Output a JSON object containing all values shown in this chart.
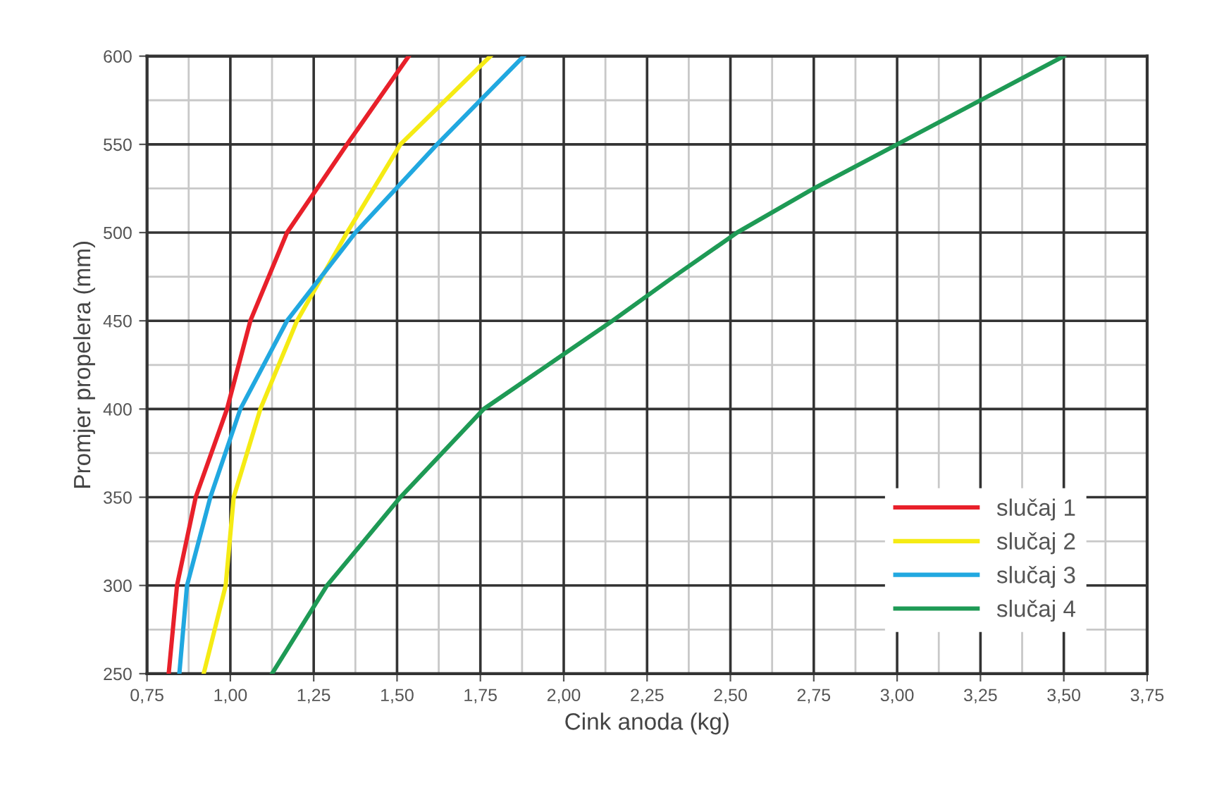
{
  "chart_data": {
    "type": "line",
    "xlabel": "Cink anoda (kg)",
    "ylabel": "Promjer propelera (mm)",
    "xlim": [
      0.75,
      3.75
    ],
    "ylim": [
      250,
      600
    ],
    "xticks": [
      {
        "value": 0.75,
        "label": "0,75"
      },
      {
        "value": 1.0,
        "label": "1,00"
      },
      {
        "value": 1.25,
        "label": "1,25"
      },
      {
        "value": 1.5,
        "label": "1,50"
      },
      {
        "value": 1.75,
        "label": "1,75"
      },
      {
        "value": 2.0,
        "label": "2,00"
      },
      {
        "value": 2.25,
        "label": "2,25"
      },
      {
        "value": 2.5,
        "label": "2,50"
      },
      {
        "value": 2.75,
        "label": "2,75"
      },
      {
        "value": 3.0,
        "label": "3,00"
      },
      {
        "value": 3.25,
        "label": "3,25"
      },
      {
        "value": 3.5,
        "label": "3,50"
      },
      {
        "value": 3.75,
        "label": "3,75"
      }
    ],
    "yticks": [
      250,
      300,
      350,
      400,
      450,
      500,
      550,
      600
    ],
    "grid": true,
    "legend": "lower right",
    "line_style": "solid",
    "marker": "none",
    "series": [
      {
        "name": "slučaj 1",
        "color": "#e8202a",
        "x": [
          0.815,
          0.84,
          0.896,
          0.99,
          1.06,
          1.17,
          1.35,
          1.535
        ],
        "values": [
          250,
          300,
          350,
          400,
          450,
          500,
          550,
          600
        ]
      },
      {
        "name": "slučaj 2",
        "color": "#f5eb14",
        "x": [
          0.92,
          0.986,
          1.01,
          1.09,
          1.2,
          1.35,
          1.51,
          1.78
        ],
        "values": [
          250,
          300,
          350,
          400,
          450,
          500,
          550,
          600
        ]
      },
      {
        "name": "slučaj 3",
        "color": "#21a8e0",
        "x": [
          0.847,
          0.87,
          0.94,
          1.03,
          1.17,
          1.375,
          1.62,
          1.88
        ],
        "values": [
          250,
          300,
          350,
          400,
          450,
          500,
          550,
          600
        ]
      },
      {
        "name": "slučaj 4",
        "color": "#1e9a55",
        "x": [
          1.125,
          1.29,
          1.51,
          1.76,
          2.146,
          2.33,
          2.52,
          2.75,
          3.0,
          3.5
        ],
        "values": [
          250,
          300,
          350,
          400,
          450,
          475,
          500,
          525,
          550,
          600
        ]
      }
    ]
  }
}
